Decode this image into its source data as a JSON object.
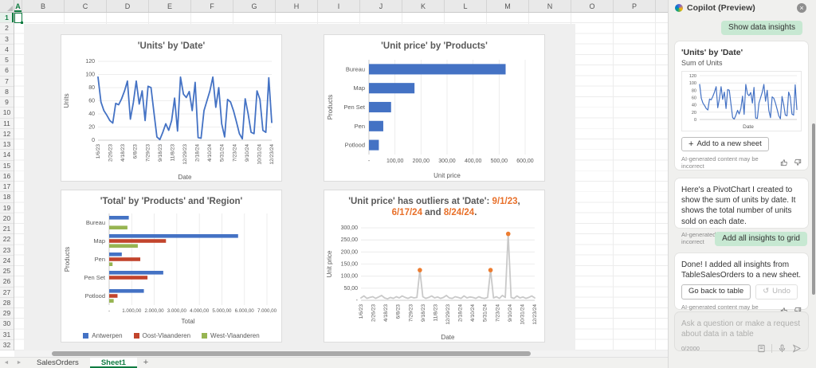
{
  "grid": {
    "columns": [
      "A",
      "B",
      "C",
      "D",
      "E",
      "F",
      "G",
      "H",
      "I",
      "J",
      "K",
      "L",
      "M",
      "N",
      "O",
      "P"
    ],
    "row_count": 33,
    "active_cell": "A1"
  },
  "sheet_tabs": {
    "prev_icon": "◄",
    "next_icon": "►",
    "tabs": [
      {
        "label": "SalesOrders",
        "active": false
      },
      {
        "label": "Sheet1",
        "active": true
      }
    ],
    "add_tab_label": "+"
  },
  "copilot": {
    "header_title": "Copilot (Preview)",
    "close_icon": "×",
    "show_data_insights_button": "Show data insights",
    "accent_green_bg": "#C7E8D2",
    "card_insight": {
      "title": "'Units' by 'Date'",
      "subtitle": "Sum of Units",
      "mini_xlabel": "Date",
      "add_button": "Add to a new sheet",
      "disclaimer": "AI-generated content may be incorrect"
    },
    "message_pivotchart": "Here's a PivotChart I created to show the sum of units by date. It shows the total number of units sold on each date.",
    "add_all_insights_button": "Add all insights to grid",
    "message_done": "Done! I added all insights from TableSalesOrders to a new sheet.",
    "go_back_button": "Go back to table",
    "undo_button": "Undo",
    "undo_icon": "↺",
    "disclaimer": "AI-generated content may be incorrect",
    "input_placeholder": "Ask a question or make a request about data in a table",
    "char_counter": "0/2000"
  },
  "chart_data": [
    {
      "key": "units_by_date",
      "type": "line",
      "title": "'Units' by 'Date'",
      "xlabel": "Date",
      "ylabel": "Units",
      "ylim": [
        0,
        120
      ],
      "yticks": [
        "120",
        "100",
        "80",
        "60",
        "40",
        "20",
        "0"
      ],
      "xticklabels": [
        "1/6/23",
        "2/26/23",
        "4/18/23",
        "6/8/23",
        "7/29/23",
        "9/18/23",
        "11/8/23",
        "12/29/23",
        "2/18/24",
        "4/10/24",
        "5/31/24",
        "7/23/24",
        "9/10/24",
        "10/31/24",
        "12/23/24"
      ],
      "line_color": "#4472C4",
      "values": [
        96,
        58,
        45,
        38,
        30,
        26,
        56,
        54,
        63,
        75,
        90,
        32,
        57,
        90,
        55,
        75,
        30,
        82,
        80,
        42,
        5,
        1,
        12,
        25,
        15,
        30,
        64,
        14,
        96,
        70,
        65,
        74,
        45,
        88,
        4,
        3,
        45,
        60,
        75,
        96,
        50,
        80,
        25,
        5,
        62,
        58,
        45,
        28,
        10,
        2,
        63,
        40,
        12,
        10,
        75,
        62,
        15,
        12,
        95,
        27
      ]
    },
    {
      "key": "unit_price_by_products",
      "type": "bar-h",
      "title": "'Unit price' by 'Products'",
      "xlabel": "Unit price",
      "ylabel": "Products",
      "categories": [
        "Bureau",
        "Map",
        "Pen Set",
        "Pen",
        "Potlood"
      ],
      "values": [
        525,
        175,
        85,
        55,
        38
      ],
      "xlim": [
        0,
        600
      ],
      "xticks": [
        "-",
        "100,00",
        "200,00",
        "300,00",
        "400,00",
        "500,00",
        "600,00"
      ],
      "bar_color": "#4472C4"
    },
    {
      "key": "total_by_products_region",
      "type": "bar-h-grouped",
      "title": "'Total' by 'Products' and 'Region'",
      "xlabel": "Total",
      "ylabel": "Products",
      "categories": [
        "Bureau",
        "Map",
        "Pen",
        "Pen Set",
        "Potlood"
      ],
      "series": [
        {
          "name": "Antwerpen",
          "color": "#4472C4",
          "values": [
            870,
            5720,
            560,
            2400,
            1540
          ]
        },
        {
          "name": "Oost-Vlaanderen",
          "color": "#C2442C",
          "values": [
            0,
            2520,
            1380,
            1700,
            370
          ]
        },
        {
          "name": "West-Vlaanderen",
          "color": "#97B552",
          "values": [
            810,
            1270,
            150,
            0,
            200
          ]
        }
      ],
      "xlim": [
        0,
        7000
      ],
      "xticks": [
        "-",
        "1.000,00",
        "2.000,00",
        "3.000,00",
        "4.000,00",
        "5.000,00",
        "6.000,00",
        "7.000,00"
      ],
      "legend_position": "bottom"
    },
    {
      "key": "unit_price_outliers",
      "type": "line",
      "title_parts": [
        {
          "text": "'Unit price' has outliers at 'Date': ",
          "color": "#595959"
        },
        {
          "text": "9/1/23",
          "color": "#E8702A"
        },
        {
          "text": ", ",
          "color": "#595959"
        },
        {
          "text": "6/17/24",
          "color": "#E8702A"
        },
        {
          "text": " and ",
          "color": "#595959"
        },
        {
          "text": "8/24/24",
          "color": "#E8702A"
        },
        {
          "text": ".",
          "color": "#595959"
        }
      ],
      "xlabel": "Date",
      "ylabel": "Unit price",
      "ylim": [
        0,
        300
      ],
      "yticks": [
        "300,00",
        "250,00",
        "200,00",
        "150,00",
        "100,00",
        "50,00",
        "-"
      ],
      "xticklabels": [
        "1/6/23",
        "2/26/23",
        "4/18/23",
        "6/8/23",
        "7/29/23",
        "9/18/23",
        "11/8/23",
        "12/29/23",
        "2/18/24",
        "4/10/24",
        "5/31/24",
        "7/23/24",
        "9/10/24",
        "10/31/24",
        "12/23/24"
      ],
      "line_color": "#C9C9C9",
      "marker_color": "#ED7D31",
      "outlier_indices": [
        20,
        44,
        50
      ],
      "values": [
        10,
        18,
        8,
        12,
        15,
        8,
        14,
        20,
        10,
        6,
        12,
        8,
        15,
        10,
        18,
        12,
        8,
        14,
        10,
        12,
        125,
        15,
        8,
        12,
        18,
        10,
        14,
        8,
        12,
        20,
        10,
        8,
        15,
        12,
        8,
        18,
        10,
        14,
        12,
        8,
        15,
        10,
        8,
        12,
        125,
        10,
        15,
        8,
        20,
        12,
        275,
        12,
        8,
        18,
        10,
        14,
        8,
        12,
        18,
        10
      ]
    }
  ]
}
